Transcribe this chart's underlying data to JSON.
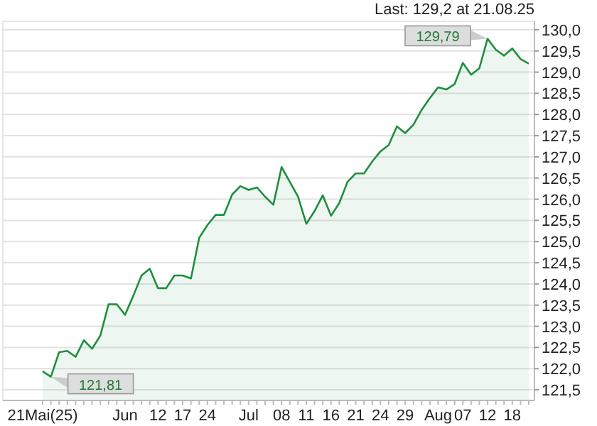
{
  "chart_data": {
    "type": "area",
    "title": "Last: 129,2 at 21.08.25",
    "categories": [
      "21Mai(25)",
      null,
      null,
      null,
      null,
      null,
      null,
      null,
      null,
      null,
      "Jun",
      null,
      null,
      null,
      "12",
      null,
      null,
      "17",
      null,
      null,
      "24",
      null,
      null,
      null,
      null,
      "Jul",
      null,
      null,
      null,
      "08",
      null,
      null,
      "11",
      null,
      null,
      "16",
      null,
      null,
      "21",
      null,
      null,
      "24",
      null,
      null,
      "29",
      null,
      null,
      null,
      "Aug",
      null,
      null,
      "07",
      null,
      null,
      "12",
      null,
      null,
      "18",
      null,
      null
    ],
    "series": [
      {
        "color": "#1e8f3c",
        "values": [
          121.94,
          121.81,
          122.39,
          122.42,
          122.28,
          122.67,
          122.47,
          122.78,
          123.52,
          123.52,
          123.27,
          123.72,
          124.2,
          124.36,
          123.9,
          123.9,
          124.2,
          124.2,
          124.13,
          125.09,
          125.39,
          125.63,
          125.63,
          126.11,
          126.31,
          126.22,
          126.28,
          126.06,
          125.87,
          126.76,
          126.41,
          126.06,
          125.42,
          125.72,
          126.09,
          125.61,
          125.91,
          126.41,
          126.61,
          126.61,
          126.89,
          127.13,
          127.28,
          127.72,
          127.56,
          127.76,
          128.11,
          128.39,
          128.64,
          128.59,
          128.72,
          129.22,
          128.94,
          129.09,
          129.79,
          129.53,
          129.39,
          129.56,
          129.31,
          129.2
        ]
      }
    ],
    "ylim": [
      121.25,
      130.2
    ],
    "yticks": [
      {
        "value": 121.5,
        "label": "121,5"
      },
      {
        "value": 122,
        "label": "122,0"
      },
      {
        "value": 122.5,
        "label": "122,5"
      },
      {
        "value": 123,
        "label": "123,0"
      },
      {
        "value": 123.5,
        "label": "123,5"
      },
      {
        "value": 124,
        "label": "124,0"
      },
      {
        "value": 124.5,
        "label": "124,5"
      },
      {
        "value": 125,
        "label": "125,0"
      },
      {
        "value": 125.5,
        "label": "125,5"
      },
      {
        "value": 126,
        "label": "126,0"
      },
      {
        "value": 126.5,
        "label": "126,5"
      },
      {
        "value": 127,
        "label": "127,0"
      },
      {
        "value": 127.5,
        "label": "127,5"
      },
      {
        "value": 128,
        "label": "128,0"
      },
      {
        "value": 128.5,
        "label": "128,5"
      },
      {
        "value": 129,
        "label": "129,0"
      },
      {
        "value": 129.5,
        "label": "129,5"
      },
      {
        "value": 130,
        "label": "130,0"
      }
    ],
    "grid": "y",
    "annotations": [
      "129,79",
      "121,81"
    ]
  }
}
